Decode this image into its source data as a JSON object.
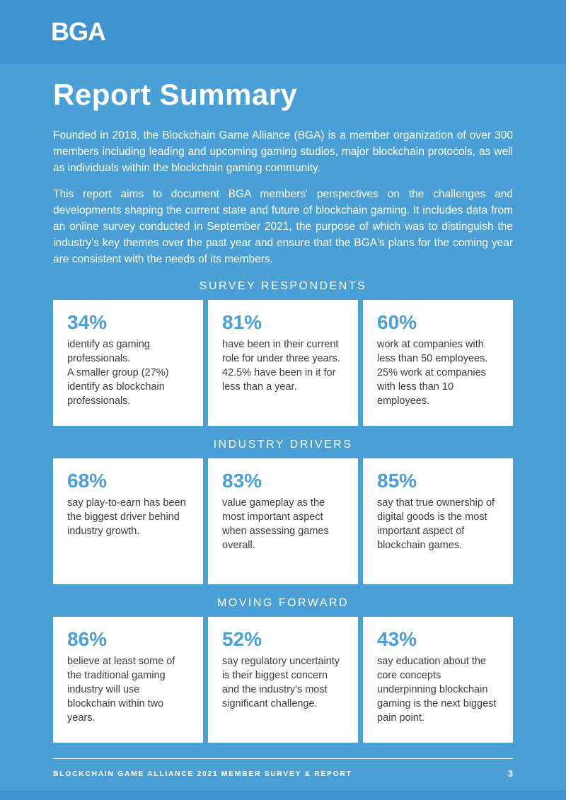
{
  "colors": {
    "header_blue": "#3F93CE",
    "body_blue": "#4AA0D6",
    "accent_blue": "#4A9FD6",
    "card_text": "#3C3C3C"
  },
  "header": {
    "logo": "BGA"
  },
  "page_title": "Report Summary",
  "intro": {
    "paragraph1": "Founded in 2018, the Blockchain Game Alliance (BGA) is a member organization of over 300 members including leading and upcoming gaming studios, major blockchain protocols, as well as individuals within the blockchain gaming community.",
    "paragraph2": "This report aims to document BGA members' perspectives on the challenges and developments shaping the current state and future of blockchain gaming. It includes data from an online survey conducted in September 2021, the purpose of which was to distinguish the industry's key themes over the past year and ensure that the BGA's plans for the coming year are consistent with the needs of its members."
  },
  "sections": [
    {
      "heading": "SURVEY RESPONDENTS",
      "cards": [
        {
          "value": "34%",
          "text": "identify as gaming professionals.\nA smaller group (27%) identify as blockchain professionals."
        },
        {
          "value": "81%",
          "text": "have been in their current role for under three years. 42.5% have been in it for less than a year."
        },
        {
          "value": "60%",
          "text": "work at companies with less than 50 employees. 25% work at companies with less than 10 employees."
        }
      ]
    },
    {
      "heading": "INDUSTRY DRIVERS",
      "cards": [
        {
          "value": "68%",
          "text": "say play-to-earn has been the biggest driver behind industry growth."
        },
        {
          "value": "83%",
          "text": "value gameplay as the most important aspect when assessing games overall."
        },
        {
          "value": "85%",
          "text": "say that true ownership of digital goods is the most important aspect of blockchain games."
        }
      ]
    },
    {
      "heading": "MOVING FORWARD",
      "cards": [
        {
          "value": "86%",
          "text": "believe at least some of the traditional gaming industry will use blockchain within two years."
        },
        {
          "value": "52%",
          "text": "say regulatory uncertainty is their biggest concern and the industry's most significant challenge."
        },
        {
          "value": "43%",
          "text": "say education about the core concepts underpinning blockchain gaming is the next biggest pain point."
        }
      ]
    }
  ],
  "footer": {
    "label": "BLOCKCHAIN GAME ALLIANCE 2021 MEMBER SURVEY & REPORT",
    "page_number": "3"
  }
}
